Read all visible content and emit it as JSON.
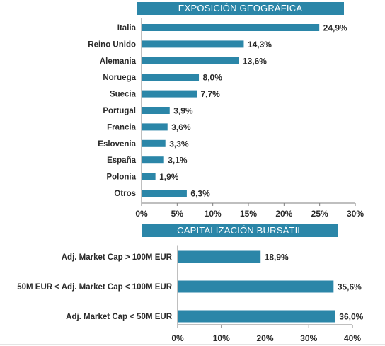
{
  "chart_data": [
    {
      "type": "bar",
      "orientation": "horizontal",
      "title": "EXPOSICIÓN GEOGRÁFICA",
      "categories": [
        "Italia",
        "Reino Unido",
        "Alemania",
        "Noruega",
        "Suecia",
        "Portugal",
        "Francia",
        "Eslovenia",
        "España",
        "Polonia",
        "Otros"
      ],
      "values": [
        24.9,
        14.3,
        13.6,
        8.0,
        7.7,
        3.9,
        3.6,
        3.3,
        3.1,
        1.9,
        6.3
      ],
      "value_labels": [
        "24,9%",
        "14,3%",
        "13,6%",
        "8,0%",
        "7,7%",
        "3,9%",
        "3,6%",
        "3,3%",
        "3,1%",
        "1,9%",
        "6,3%"
      ],
      "xlim": [
        0,
        30
      ],
      "xticks": [
        0,
        5,
        10,
        15,
        20,
        25,
        30
      ],
      "xtick_labels": [
        "0%",
        "5%",
        "10%",
        "15%",
        "20%",
        "25%",
        "30%"
      ],
      "bar_color": "#2b86a8"
    },
    {
      "type": "bar",
      "orientation": "horizontal",
      "title": "CAPITALIZACIÓN BURSÁTIL",
      "categories": [
        "Adj. Market Cap > 100M EUR",
        "50M EUR < Adj. Market Cap < 100M EUR",
        "Adj. Market Cap < 50M EUR"
      ],
      "values": [
        18.9,
        35.6,
        36.0
      ],
      "value_labels": [
        "18,9%",
        "35,6%",
        "36,0%"
      ],
      "xlim": [
        0,
        40
      ],
      "xticks": [
        0,
        10,
        20,
        30,
        40
      ],
      "xtick_labels": [
        "0%",
        "10%",
        "20%",
        "30%",
        "40%"
      ],
      "bar_color": "#2b86a8"
    }
  ]
}
